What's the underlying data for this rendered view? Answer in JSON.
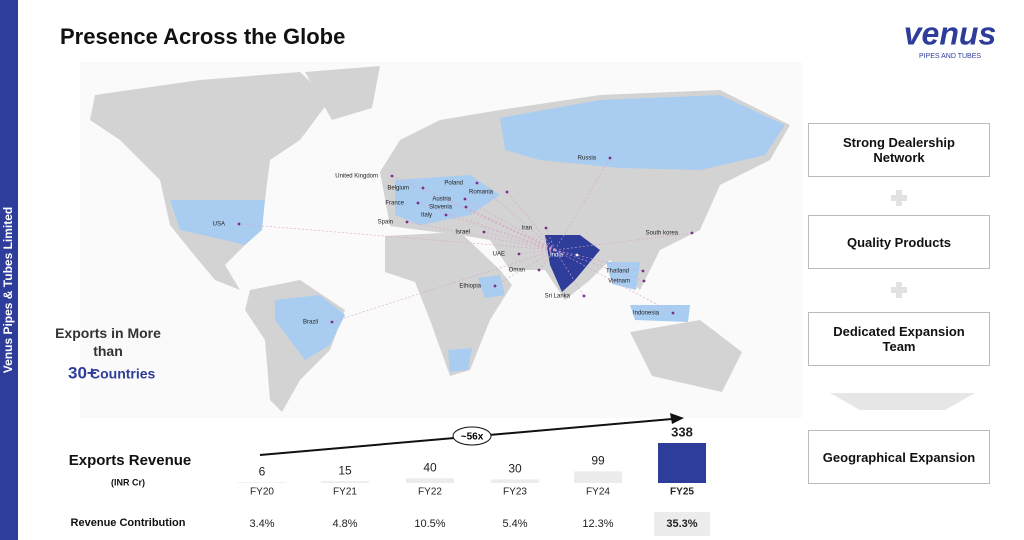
{
  "sidebar": "Venus Pipes & Tubes Limited",
  "header": {
    "title": "Presence Across the Globe",
    "logo": "venus",
    "logo_tagline": "PIPES AND TUBES"
  },
  "map": {
    "countries": [
      "United Kingdom",
      "Poland",
      "Belgium",
      "Romania",
      "Austria",
      "France",
      "Slovenia",
      "Italy",
      "Spain",
      "USA",
      "Israel",
      "Iran",
      "UAE",
      "Oman",
      "India",
      "Russia",
      "South korea",
      "Thailand",
      "Vietnam",
      "Sri Lanka",
      "Ethiopia",
      "Brazil",
      "Indonesia"
    ]
  },
  "exports_callout": {
    "line1": "Exports in More than",
    "count": "30+",
    "label": "Countries"
  },
  "exports_revenue": {
    "title": "Exports Revenue",
    "unit": "(INR Cr)",
    "growth": "~56x",
    "categories": [
      "FY20",
      "FY21",
      "FY22",
      "FY23",
      "FY24",
      "FY25"
    ],
    "values": [
      6,
      15,
      40,
      30,
      99,
      338
    ],
    "contribution_label": "Revenue Contribution",
    "contribution": [
      "3.4%",
      "4.8%",
      "10.5%",
      "5.4%",
      "12.3%",
      "35.3%"
    ]
  },
  "pillars": [
    "Strong Dealership Network",
    "Quality Products",
    "Dedicated Expansion Team",
    "Geographical Expansion"
  ]
}
